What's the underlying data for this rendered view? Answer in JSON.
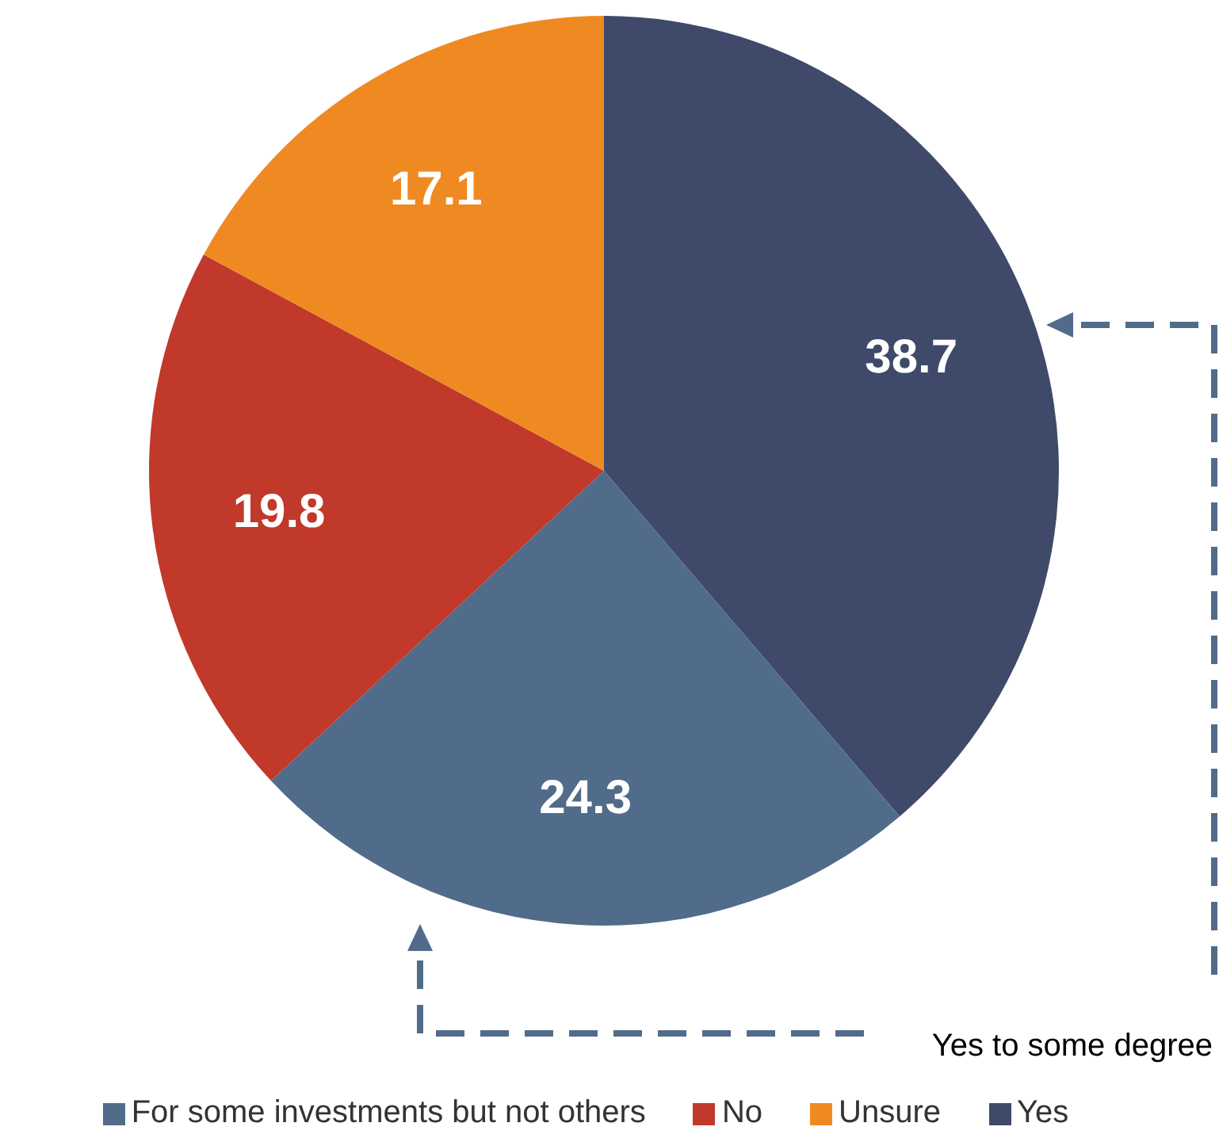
{
  "chart_data": {
    "type": "pie",
    "categories": [
      "Yes",
      "For some investments but not others",
      "No",
      "Unsure"
    ],
    "values": [
      38.7,
      24.3,
      19.8,
      17.1
    ],
    "colors": [
      "#3f4a6a",
      "#516b8a",
      "#c0392b",
      "#ef8a22"
    ],
    "data_labels": true,
    "legend": "bottom",
    "annotations": [
      "Yes to some degree"
    ]
  }
}
